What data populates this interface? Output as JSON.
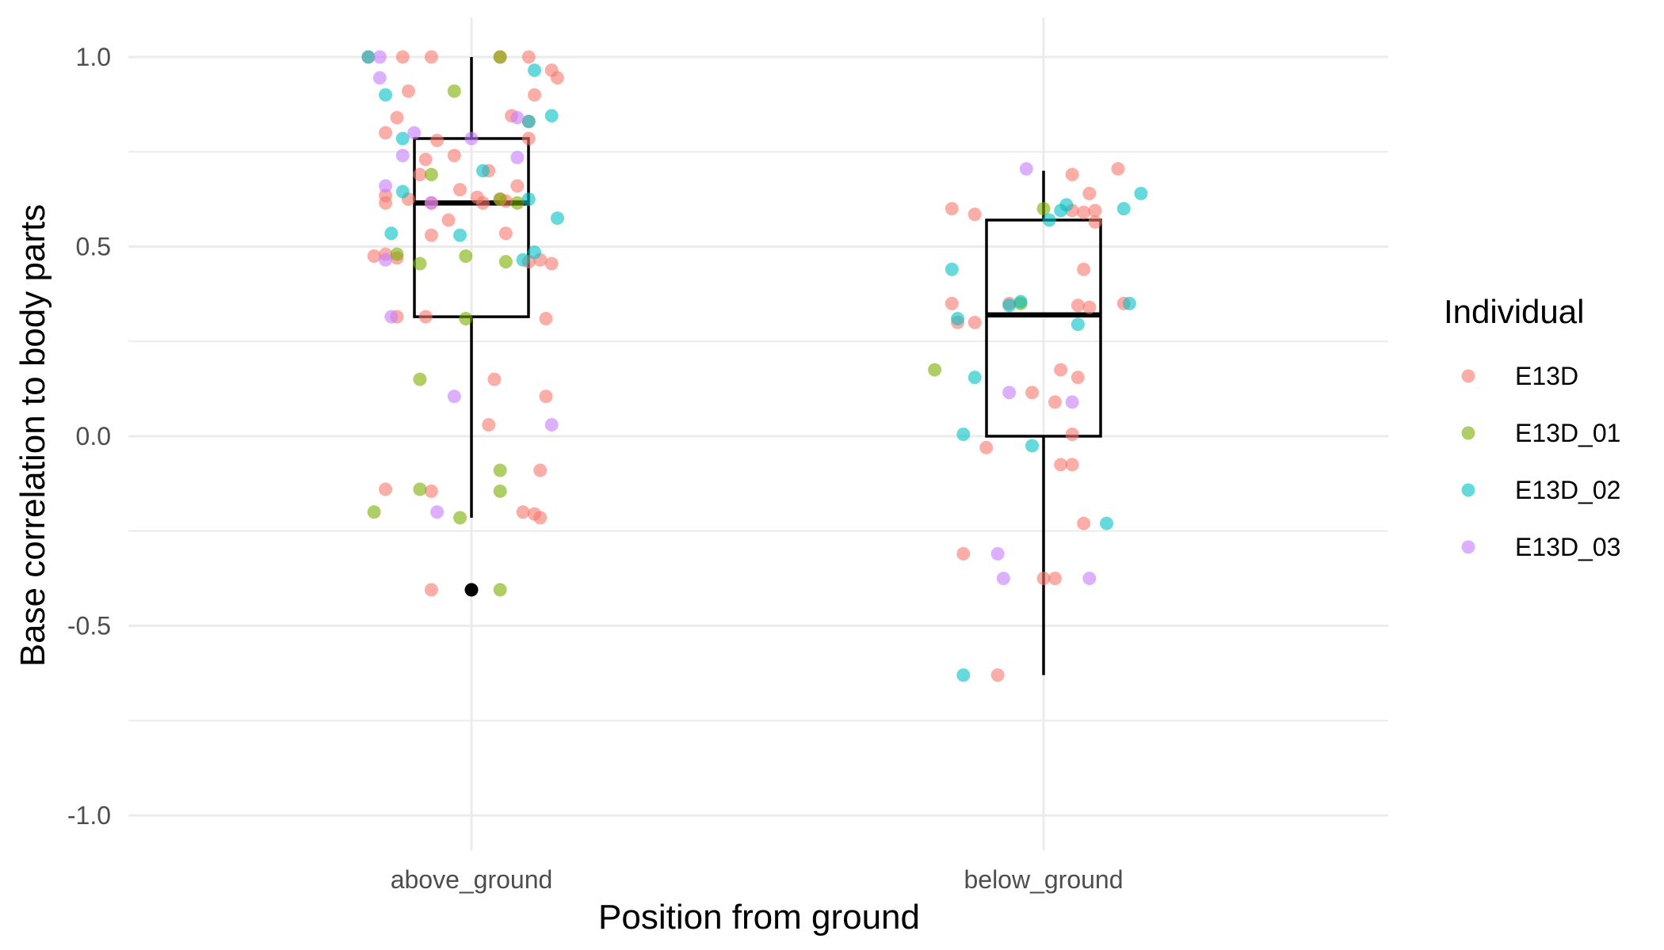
{
  "chart_data": {
    "type": "boxplot-jitter",
    "xlabel": "Position from ground",
    "ylabel": "Base correlation to body parts",
    "categories": [
      "above_ground",
      "below_ground"
    ],
    "ylim": [
      -1.1,
      1.1
    ],
    "yticks": [
      -1.0,
      -0.5,
      0.0,
      0.5,
      1.0
    ],
    "ytick_labels": [
      "-1.0",
      "-0.5",
      "0.0",
      "0.5",
      "1.0"
    ],
    "grid": true,
    "legend": {
      "title": "Individual",
      "position": "right"
    },
    "series_colors": {
      "E13D": "#F8766D",
      "E13D_01": "#7CAE00",
      "E13D_02": "#00BFC4",
      "E13D_03": "#C77CFF"
    },
    "boxes": [
      {
        "category": "above_ground",
        "q1": 0.315,
        "median": 0.615,
        "q3": 0.785,
        "whisker_low": -0.215,
        "whisker_high": 1.0,
        "outliers": [
          -0.405
        ]
      },
      {
        "category": "below_ground",
        "q1": 0.0,
        "median": 0.32,
        "q3": 0.57,
        "whisker_low": -0.63,
        "whisker_high": 0.7,
        "outliers": []
      }
    ],
    "series": [
      {
        "name": "E13D",
        "points": [
          [
            "above_ground",
            -0.18,
            1.0
          ],
          [
            "above_ground",
            -0.12,
            1.0
          ],
          [
            "above_ground",
            -0.07,
            1.0
          ],
          [
            "above_ground",
            0.05,
            1.0
          ],
          [
            "above_ground",
            0.1,
            1.0
          ],
          [
            "above_ground",
            0.14,
            0.965
          ],
          [
            "above_ground",
            0.15,
            0.945
          ],
          [
            "above_ground",
            -0.11,
            0.91
          ],
          [
            "above_ground",
            0.11,
            0.9
          ],
          [
            "above_ground",
            -0.13,
            0.84
          ],
          [
            "above_ground",
            0.07,
            0.845
          ],
          [
            "above_ground",
            0.1,
            0.83
          ],
          [
            "above_ground",
            -0.15,
            0.8
          ],
          [
            "above_ground",
            0.1,
            0.785
          ],
          [
            "above_ground",
            -0.06,
            0.78
          ],
          [
            "above_ground",
            -0.03,
            0.74
          ],
          [
            "above_ground",
            -0.08,
            0.73
          ],
          [
            "above_ground",
            0.03,
            0.7
          ],
          [
            "above_ground",
            -0.09,
            0.69
          ],
          [
            "above_ground",
            0.08,
            0.66
          ],
          [
            "above_ground",
            -0.02,
            0.65
          ],
          [
            "above_ground",
            -0.15,
            0.635
          ],
          [
            "above_ground",
            -0.11,
            0.625
          ],
          [
            "above_ground",
            0.01,
            0.63
          ],
          [
            "above_ground",
            0.05,
            0.625
          ],
          [
            "above_ground",
            -0.15,
            0.615
          ],
          [
            "above_ground",
            -0.07,
            0.615
          ],
          [
            "above_ground",
            0.02,
            0.615
          ],
          [
            "above_ground",
            0.06,
            0.62
          ],
          [
            "above_ground",
            -0.04,
            0.57
          ],
          [
            "above_ground",
            -0.07,
            0.53
          ],
          [
            "above_ground",
            0.06,
            0.535
          ],
          [
            "above_ground",
            -0.17,
            0.475
          ],
          [
            "above_ground",
            -0.15,
            0.48
          ],
          [
            "above_ground",
            -0.13,
            0.47
          ],
          [
            "above_ground",
            0.1,
            0.46
          ],
          [
            "above_ground",
            0.12,
            0.465
          ],
          [
            "above_ground",
            0.14,
            0.455
          ],
          [
            "above_ground",
            -0.13,
            0.315
          ],
          [
            "above_ground",
            -0.08,
            0.315
          ],
          [
            "above_ground",
            0.13,
            0.31
          ],
          [
            "above_ground",
            0.04,
            0.15
          ],
          [
            "above_ground",
            0.13,
            0.105
          ],
          [
            "above_ground",
            0.03,
            0.03
          ],
          [
            "above_ground",
            0.12,
            -0.09
          ],
          [
            "above_ground",
            -0.15,
            -0.14
          ],
          [
            "above_ground",
            -0.07,
            -0.145
          ],
          [
            "above_ground",
            0.09,
            -0.2
          ],
          [
            "above_ground",
            0.11,
            -0.205
          ],
          [
            "above_ground",
            0.12,
            -0.215
          ],
          [
            "above_ground",
            -0.07,
            -0.405
          ],
          [
            "below_ground",
            -0.16,
            0.6
          ],
          [
            "below_ground",
            -0.12,
            0.585
          ],
          [
            "below_ground",
            0.13,
            0.705
          ],
          [
            "below_ground",
            0.05,
            0.69
          ],
          [
            "below_ground",
            0.05,
            0.595
          ],
          [
            "below_ground",
            0.07,
            0.59
          ],
          [
            "below_ground",
            0.09,
            0.595
          ],
          [
            "below_ground",
            0.09,
            0.565
          ],
          [
            "below_ground",
            0.08,
            0.64
          ],
          [
            "below_ground",
            0.07,
            0.44
          ],
          [
            "below_ground",
            -0.16,
            0.35
          ],
          [
            "below_ground",
            -0.15,
            0.3
          ],
          [
            "below_ground",
            -0.12,
            0.3
          ],
          [
            "below_ground",
            -0.06,
            0.35
          ],
          [
            "below_ground",
            0.08,
            0.34
          ],
          [
            "below_ground",
            0.06,
            0.345
          ],
          [
            "below_ground",
            0.14,
            0.35
          ],
          [
            "below_ground",
            0.03,
            0.175
          ],
          [
            "below_ground",
            0.06,
            0.155
          ],
          [
            "below_ground",
            -0.02,
            0.115
          ],
          [
            "below_ground",
            0.02,
            0.09
          ],
          [
            "below_ground",
            0.05,
            0.005
          ],
          [
            "below_ground",
            -0.1,
            -0.03
          ],
          [
            "below_ground",
            0.03,
            -0.075
          ],
          [
            "below_ground",
            0.05,
            -0.075
          ],
          [
            "below_ground",
            0.07,
            -0.23
          ],
          [
            "below_ground",
            -0.14,
            -0.31
          ],
          [
            "below_ground",
            0.0,
            -0.375
          ],
          [
            "below_ground",
            0.02,
            -0.375
          ],
          [
            "below_ground",
            -0.08,
            -0.63
          ]
        ]
      },
      {
        "name": "E13D_01",
        "points": [
          [
            "above_ground",
            0.05,
            1.0
          ],
          [
            "above_ground",
            -0.03,
            0.91
          ],
          [
            "above_ground",
            -0.07,
            0.69
          ],
          [
            "above_ground",
            0.05,
            0.625
          ],
          [
            "above_ground",
            0.08,
            0.615
          ],
          [
            "above_ground",
            -0.01,
            0.475
          ],
          [
            "above_ground",
            -0.13,
            0.48
          ],
          [
            "above_ground",
            -0.09,
            0.455
          ],
          [
            "above_ground",
            0.06,
            0.46
          ],
          [
            "above_ground",
            -0.01,
            0.31
          ],
          [
            "above_ground",
            -0.09,
            0.15
          ],
          [
            "above_ground",
            0.05,
            -0.09
          ],
          [
            "above_ground",
            -0.09,
            -0.14
          ],
          [
            "above_ground",
            0.05,
            -0.145
          ],
          [
            "above_ground",
            -0.17,
            -0.2
          ],
          [
            "above_ground",
            -0.02,
            -0.215
          ],
          [
            "above_ground",
            0.05,
            -0.405
          ],
          [
            "below_ground",
            -0.19,
            0.175
          ],
          [
            "below_ground",
            -0.04,
            0.35
          ],
          [
            "below_ground",
            0.0,
            0.6
          ]
        ]
      },
      {
        "name": "E13D_02",
        "points": [
          [
            "above_ground",
            -0.18,
            1.0
          ],
          [
            "above_ground",
            0.11,
            0.965
          ],
          [
            "above_ground",
            -0.15,
            0.9
          ],
          [
            "above_ground",
            0.14,
            0.845
          ],
          [
            "above_ground",
            0.1,
            0.83
          ],
          [
            "above_ground",
            -0.12,
            0.785
          ],
          [
            "above_ground",
            0.02,
            0.7
          ],
          [
            "above_ground",
            -0.12,
            0.645
          ],
          [
            "above_ground",
            0.1,
            0.625
          ],
          [
            "above_ground",
            0.15,
            0.575
          ],
          [
            "above_ground",
            -0.14,
            0.535
          ],
          [
            "above_ground",
            -0.02,
            0.53
          ],
          [
            "above_ground",
            0.11,
            0.485
          ],
          [
            "above_ground",
            0.09,
            0.465
          ],
          [
            "below_ground",
            -0.16,
            0.44
          ],
          [
            "below_ground",
            -0.15,
            0.31
          ],
          [
            "below_ground",
            -0.06,
            0.345
          ],
          [
            "below_ground",
            -0.04,
            0.355
          ],
          [
            "below_ground",
            0.03,
            0.595
          ],
          [
            "below_ground",
            0.01,
            0.57
          ],
          [
            "below_ground",
            0.04,
            0.61
          ],
          [
            "below_ground",
            0.17,
            0.64
          ],
          [
            "below_ground",
            0.14,
            0.6
          ],
          [
            "below_ground",
            0.06,
            0.295
          ],
          [
            "below_ground",
            0.15,
            0.35
          ],
          [
            "below_ground",
            -0.12,
            0.155
          ],
          [
            "below_ground",
            -0.14,
            0.005
          ],
          [
            "below_ground",
            -0.02,
            -0.025
          ],
          [
            "below_ground",
            0.11,
            -0.23
          ],
          [
            "below_ground",
            -0.14,
            -0.63
          ]
        ]
      },
      {
        "name": "E13D_03",
        "points": [
          [
            "above_ground",
            -0.16,
            1.0
          ],
          [
            "above_ground",
            -0.16,
            0.945
          ],
          [
            "above_ground",
            -0.1,
            0.8
          ],
          [
            "above_ground",
            0.0,
            0.785
          ],
          [
            "above_ground",
            0.08,
            0.84
          ],
          [
            "above_ground",
            0.08,
            0.735
          ],
          [
            "above_ground",
            -0.12,
            0.74
          ],
          [
            "above_ground",
            -0.15,
            0.66
          ],
          [
            "above_ground",
            -0.07,
            0.615
          ],
          [
            "above_ground",
            -0.15,
            0.465
          ],
          [
            "above_ground",
            -0.14,
            0.315
          ],
          [
            "above_ground",
            -0.03,
            0.105
          ],
          [
            "above_ground",
            0.14,
            0.03
          ],
          [
            "above_ground",
            -0.06,
            -0.2
          ],
          [
            "below_ground",
            -0.03,
            0.705
          ],
          [
            "below_ground",
            -0.06,
            0.115
          ],
          [
            "below_ground",
            0.05,
            0.09
          ],
          [
            "below_ground",
            -0.08,
            -0.31
          ],
          [
            "below_ground",
            -0.07,
            -0.375
          ],
          [
            "below_ground",
            0.08,
            -0.375
          ]
        ]
      }
    ]
  }
}
